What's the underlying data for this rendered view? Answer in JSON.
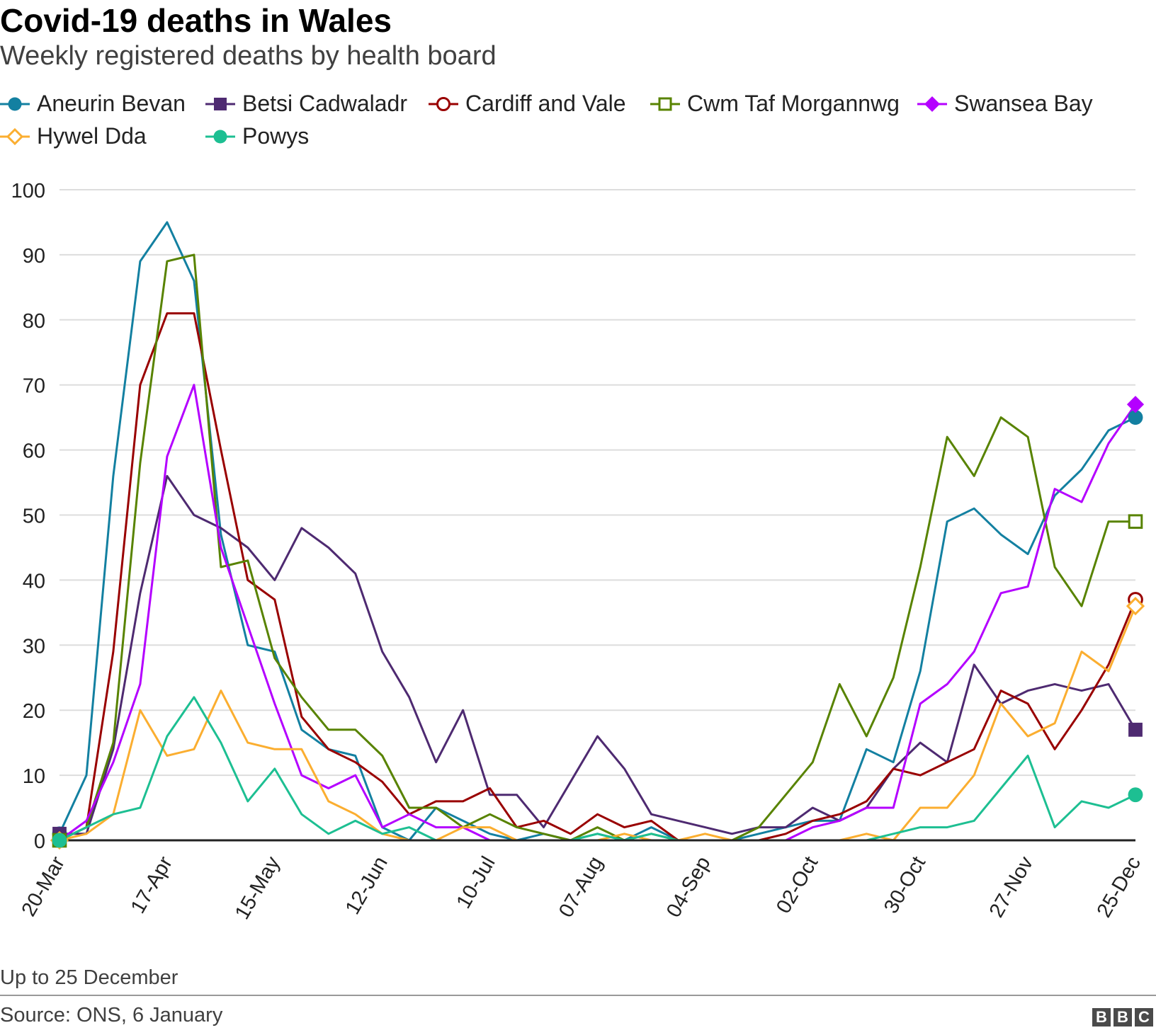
{
  "header": {
    "title": "Covid-19 deaths in Wales",
    "subtitle": "Weekly registered deaths by health board"
  },
  "footer": {
    "note": "Up to 25 December",
    "source": "Source: ONS, 6 January",
    "logo_letters": [
      "B",
      "B",
      "C"
    ]
  },
  "chart_data": {
    "type": "line",
    "title": "Covid-19 deaths in Wales",
    "subtitle": "Weekly registered deaths by health board",
    "ylim": [
      0,
      100
    ],
    "yticks": [
      0,
      10,
      20,
      30,
      40,
      50,
      60,
      70,
      80,
      90,
      100
    ],
    "grid": true,
    "legend_position": "top",
    "x": [
      "20-Mar",
      "27-Mar",
      "03-Apr",
      "10-Apr",
      "17-Apr",
      "24-Apr",
      "01-May",
      "08-May",
      "15-May",
      "22-May",
      "29-May",
      "05-Jun",
      "12-Jun",
      "19-Jun",
      "26-Jun",
      "03-Jul",
      "10-Jul",
      "17-Jul",
      "24-Jul",
      "31-Jul",
      "07-Aug",
      "14-Aug",
      "21-Aug",
      "28-Aug",
      "04-Sep",
      "11-Sep",
      "18-Sep",
      "25-Sep",
      "02-Oct",
      "09-Oct",
      "16-Oct",
      "23-Oct",
      "30-Oct",
      "06-Nov",
      "13-Nov",
      "20-Nov",
      "27-Nov",
      "04-Dec",
      "11-Dec",
      "18-Dec",
      "25-Dec"
    ],
    "xtick_labels": [
      "20-Mar",
      "17-Apr",
      "15-May",
      "12-Jun",
      "10-Jul",
      "07-Aug",
      "04-Sep",
      "02-Oct",
      "30-Oct",
      "27-Nov",
      "25-Dec"
    ],
    "xtick_every": 4,
    "series": [
      {
        "name": "Aneurin Bevan",
        "color": "#1380a1",
        "marker": "circle-filled",
        "values": [
          1,
          10,
          56,
          89,
          95,
          86,
          47,
          30,
          29,
          17,
          14,
          13,
          2,
          0,
          5,
          3,
          1,
          0,
          1,
          0,
          1,
          0,
          2,
          0,
          0,
          0,
          1,
          2,
          3,
          3,
          14,
          12,
          26,
          49,
          51,
          47,
          44,
          53,
          57,
          63,
          65
        ]
      },
      {
        "name": "Betsi Cadwaladr",
        "color": "#4e2a71",
        "marker": "square-filled",
        "values": [
          1,
          1,
          14,
          38,
          56,
          50,
          48,
          45,
          40,
          48,
          45,
          41,
          29,
          22,
          12,
          20,
          7,
          7,
          2,
          9,
          16,
          11,
          4,
          3,
          2,
          1,
          2,
          2,
          5,
          3,
          5,
          11,
          15,
          12,
          27,
          21,
          23,
          24,
          23,
          24,
          17
        ]
      },
      {
        "name": "Cardiff and Vale",
        "color": "#990000",
        "marker": "circle-open",
        "values": [
          0,
          2,
          29,
          70,
          81,
          81,
          60,
          40,
          37,
          19,
          14,
          12,
          9,
          4,
          6,
          6,
          8,
          2,
          3,
          1,
          4,
          2,
          3,
          0,
          0,
          0,
          0,
          1,
          3,
          4,
          6,
          11,
          10,
          12,
          14,
          23,
          21,
          14,
          20,
          27,
          37
        ]
      },
      {
        "name": "Cwm Taf Morgannwg",
        "color": "#588300",
        "marker": "square-open",
        "values": [
          0,
          2,
          15,
          58,
          89,
          90,
          42,
          43,
          28,
          22,
          17,
          17,
          13,
          5,
          5,
          2,
          4,
          2,
          1,
          0,
          2,
          0,
          1,
          0,
          0,
          0,
          2,
          7,
          12,
          24,
          16,
          25,
          42,
          62,
          56,
          65,
          62,
          42,
          36,
          49,
          49
        ]
      },
      {
        "name": "Swansea Bay",
        "color": "#b400ff",
        "marker": "diamond-filled",
        "values": [
          0,
          3,
          12,
          24,
          59,
          70,
          45,
          33,
          21,
          10,
          8,
          10,
          2,
          4,
          2,
          2,
          0,
          0,
          0,
          0,
          0,
          0,
          0,
          0,
          0,
          0,
          0,
          0,
          2,
          3,
          5,
          5,
          21,
          24,
          29,
          38,
          39,
          54,
          52,
          61,
          67
        ]
      },
      {
        "name": "Hywel Dda",
        "color": "#fbae30",
        "marker": "diamond-open",
        "values": [
          0,
          1,
          4,
          20,
          13,
          14,
          23,
          15,
          14,
          14,
          6,
          4,
          1,
          0,
          0,
          2,
          2,
          0,
          0,
          0,
          0,
          1,
          0,
          0,
          1,
          0,
          0,
          0,
          0,
          0,
          1,
          0,
          5,
          5,
          10,
          21,
          16,
          18,
          29,
          26,
          36
        ]
      },
      {
        "name": "Powys",
        "color": "#1dbf92",
        "marker": "circle-filled",
        "values": [
          0,
          2,
          4,
          5,
          16,
          22,
          15,
          6,
          11,
          4,
          1,
          3,
          1,
          2,
          0,
          0,
          0,
          0,
          0,
          0,
          1,
          0,
          1,
          0,
          0,
          0,
          0,
          0,
          0,
          0,
          0,
          1,
          2,
          2,
          3,
          8,
          13,
          2,
          6,
          5,
          7
        ]
      }
    ]
  }
}
